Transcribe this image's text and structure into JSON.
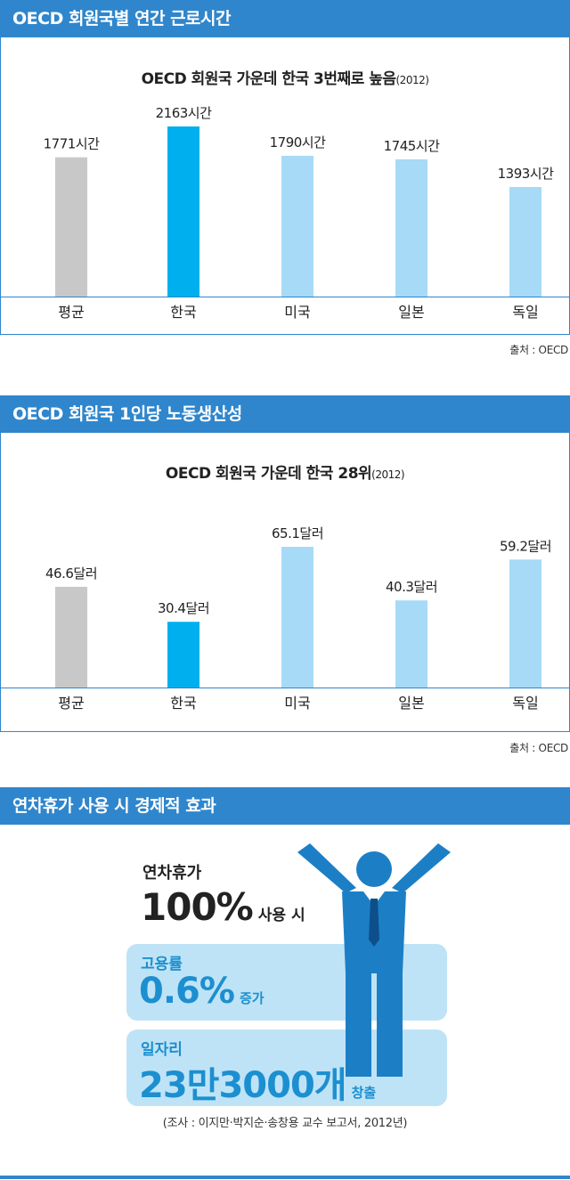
{
  "section1": {
    "header": "OECD 회원국별 연간 근로시간",
    "title": "OECD 회원국 가운데 한국 3번째로 높음",
    "year": "(2012)",
    "source": "출처 : OECD"
  },
  "section2": {
    "header": "OECD 회원국 1인당 노동생산성",
    "title": "OECD 회원국 가운데 한국 28위",
    "year": "(2012)",
    "source": "출처 : OECD"
  },
  "section3": {
    "header": "연차휴가 사용 시 경제적 효과",
    "line1": "연차휴가",
    "big": "100%",
    "big_suffix": "사용 시",
    "box1_label": "고용률",
    "box1_value": "0.6%",
    "box1_suffix": "증가",
    "box2_label": "일자리",
    "box2_value": "23만3000개",
    "box2_suffix": "창출",
    "footnote": "(조사 : 이지만·박지순·송창용 교수 보고서, 2012년)",
    "figure_icon": "person-arms-raised-icon"
  },
  "colors": {
    "header": "#2f86cc",
    "average": "#c8c8c8",
    "korea": "#00b0ee",
    "others": "#a6daf6",
    "box": "#bfe3f6",
    "box_text": "#1c8fd0",
    "figure": "#1c7fc6"
  },
  "chart_data": [
    {
      "type": "bar",
      "categories": [
        "평균",
        "한국",
        "미국",
        "일본",
        "독일"
      ],
      "values": [
        1771,
        2163,
        1790,
        1745,
        1393
      ],
      "labels": [
        "1771시간",
        "2163시간",
        "1790시간",
        "1745시간",
        "1393시간"
      ],
      "ylim": [
        0,
        2163
      ],
      "bar_colors": [
        "#c8c8c8",
        "#00b0ee",
        "#a6daf6",
        "#a6daf6",
        "#a6daf6"
      ]
    },
    {
      "type": "bar",
      "categories": [
        "평균",
        "한국",
        "미국",
        "일본",
        "독일"
      ],
      "values": [
        46.6,
        30.4,
        65.1,
        40.3,
        59.2
      ],
      "labels": [
        "46.6달러",
        "30.4달러",
        "65.1달러",
        "40.3달러",
        "59.2달러"
      ],
      "ylim": [
        0,
        65.1
      ],
      "bar_colors": [
        "#c8c8c8",
        "#00b0ee",
        "#a6daf6",
        "#a6daf6",
        "#a6daf6"
      ]
    }
  ]
}
